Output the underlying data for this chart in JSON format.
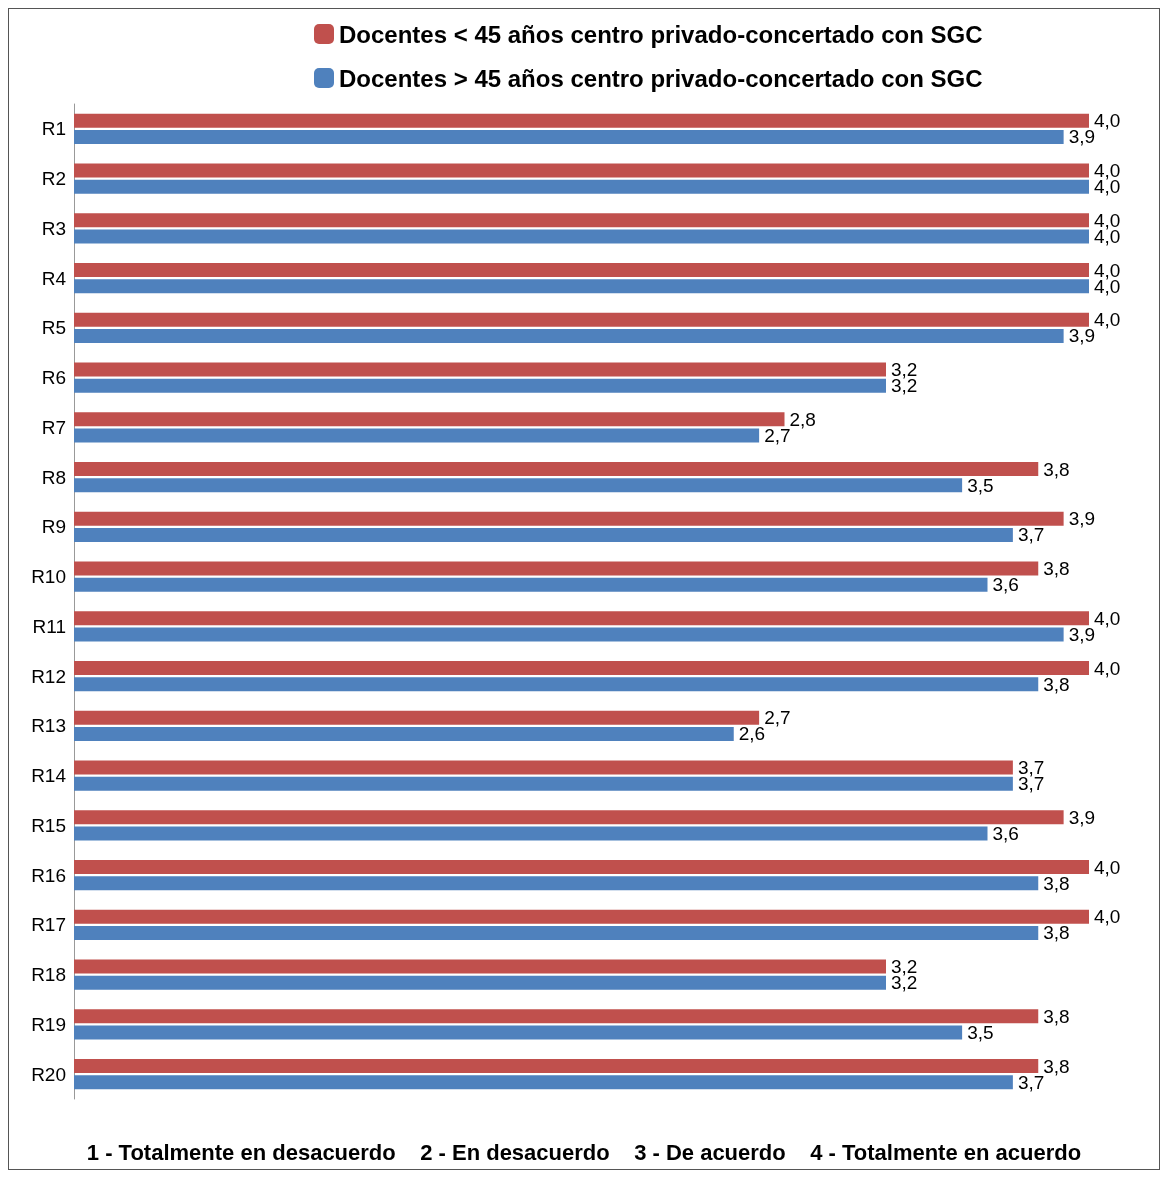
{
  "chart_data": {
    "type": "bar",
    "orientation": "horizontal",
    "categories": [
      "R1",
      "R2",
      "R3",
      "R4",
      "R5",
      "R6",
      "R7",
      "R8",
      "R9",
      "R10",
      "R11",
      "R12",
      "R13",
      "R14",
      "R15",
      "R16",
      "R17",
      "R18",
      "R19",
      "R20"
    ],
    "series": [
      {
        "name": "Docentes < 45 años centro privado-concertado con SGC",
        "color": "#c0504d",
        "values": [
          4.0,
          4.0,
          4.0,
          4.0,
          4.0,
          3.2,
          2.8,
          3.8,
          3.9,
          3.8,
          4.0,
          4.0,
          2.7,
          3.7,
          3.9,
          4.0,
          4.0,
          3.2,
          3.8,
          3.8
        ],
        "value_labels": [
          "4,0",
          "4,0",
          "4,0",
          "4,0",
          "4,0",
          "3,2",
          "2,8",
          "3,8",
          "3,9",
          "3,8",
          "4,0",
          "4,0",
          "2,7",
          "3,7",
          "3,9",
          "4,0",
          "4,0",
          "3,2",
          "3,8",
          "3,8"
        ]
      },
      {
        "name": "Docentes > 45 años centro privado-concertado con SGC",
        "color": "#4f81bd",
        "values": [
          3.9,
          4.0,
          4.0,
          4.0,
          3.9,
          3.2,
          2.7,
          3.5,
          3.7,
          3.6,
          3.9,
          3.8,
          2.6,
          3.7,
          3.6,
          3.8,
          3.8,
          3.2,
          3.5,
          3.7
        ],
        "value_labels": [
          "3,9",
          "4,0",
          "4,0",
          "4,0",
          "3,9",
          "3,2",
          "2,7",
          "3,5",
          "3,7",
          "3,6",
          "3,9",
          "3,8",
          "2,6",
          "3,7",
          "3,6",
          "3,8",
          "3,8",
          "3,2",
          "3,5",
          "3,7"
        ]
      }
    ],
    "xlim": [
      0,
      4
    ],
    "tick_labels": "y",
    "grid": false,
    "legend": "top",
    "annotations": [
      "1 - Totalmente en desacuerdo    2 - En desacuerdo    3 - De acuerdo    4 - Totalmente en acuerdo"
    ]
  }
}
